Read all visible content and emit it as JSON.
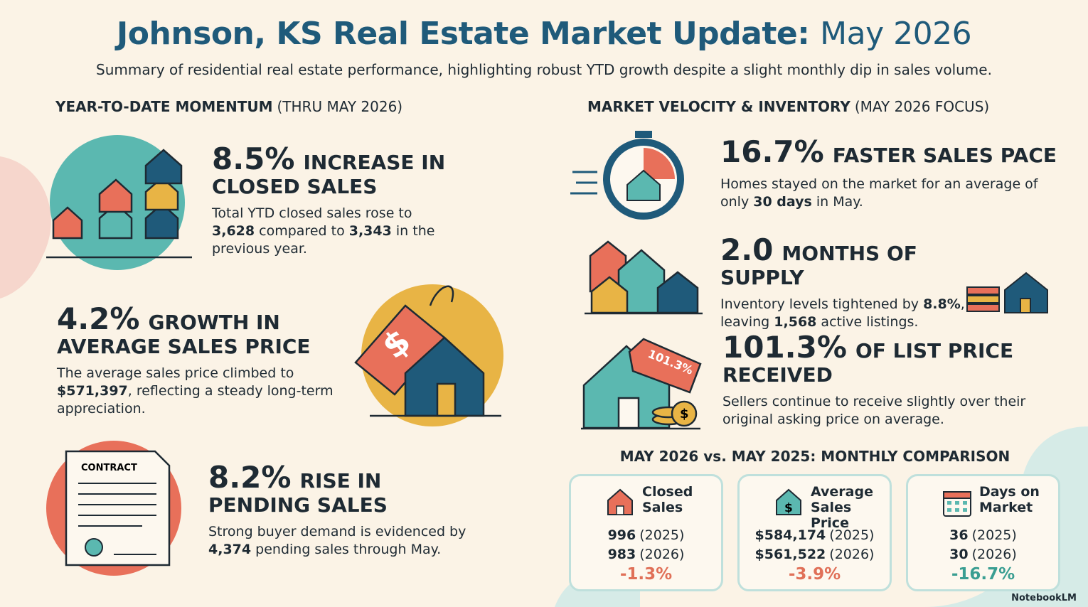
{
  "header": {
    "title": "Johnson, KS Real Estate Market Update:",
    "title_date": "May 2026",
    "subtitle": "Summary of residential real estate performance, highlighting robust YTD growth despite a slight monthly dip in sales volume."
  },
  "ytd": {
    "heading": "YEAR-TO-DATE MOMENTUM",
    "heading_note": "(THRU MAY 2026)",
    "items": [
      {
        "stat": "8.5%",
        "headline": "INCREASE IN CLOSED SALES",
        "body": [
          "Total YTD closed sales rose to ",
          "3,628",
          " compared to ",
          "3,343",
          " in the previous year."
        ]
      },
      {
        "stat": "4.2%",
        "headline": "GROWTH IN AVERAGE SALES PRICE",
        "body": [
          "The average sales price climbed to ",
          "$571,397",
          ", reflecting a steady long-term appreciation."
        ]
      },
      {
        "stat": "8.2%",
        "headline": "RISE IN PENDING SALES",
        "body": [
          "Strong buyer demand is evidenced by ",
          "4,374",
          " pending sales through May."
        ]
      }
    ]
  },
  "velocity": {
    "heading": "MARKET VELOCITY & INVENTORY",
    "heading_note": "(MAY 2026 FOCUS)",
    "items": [
      {
        "stat": "16.7%",
        "headline": "FASTER SALES PACE",
        "body": [
          "Homes stayed on the market for an average of only ",
          "30 days",
          " in May."
        ]
      },
      {
        "stat": "2.0",
        "headline": "MONTHS OF SUPPLY",
        "body": [
          "Inventory levels tightened by ",
          "8.8%",
          ", leaving ",
          "1,568",
          " active listings."
        ]
      },
      {
        "stat": "101.3%",
        "headline": "OF LIST PRICE RECEIVED",
        "body": [
          "Sellers continue to receive slightly over their original asking price on average."
        ]
      }
    ]
  },
  "comparison": {
    "heading": "MAY 2026 vs. MAY 2025: MONTHLY COMPARISON",
    "cards": [
      {
        "label": "Closed Sales",
        "rows": [
          [
            "996",
            "(2025)"
          ],
          [
            "983",
            "(2026)"
          ]
        ],
        "change": "-1.3%"
      },
      {
        "label": "Average Sales Price",
        "rows": [
          [
            "$584,174",
            "(2025)"
          ],
          [
            "$561,522",
            "(2026)"
          ]
        ],
        "change": "-3.9%"
      },
      {
        "label": "Days on Market",
        "rows": [
          [
            "36",
            "(2025)"
          ],
          [
            "30",
            "(2026)"
          ]
        ],
        "change": "-16.7%"
      }
    ]
  },
  "icons": {
    "contract": "CONTRACT",
    "tag": "101.3%"
  },
  "footer": "NotebookLM"
}
